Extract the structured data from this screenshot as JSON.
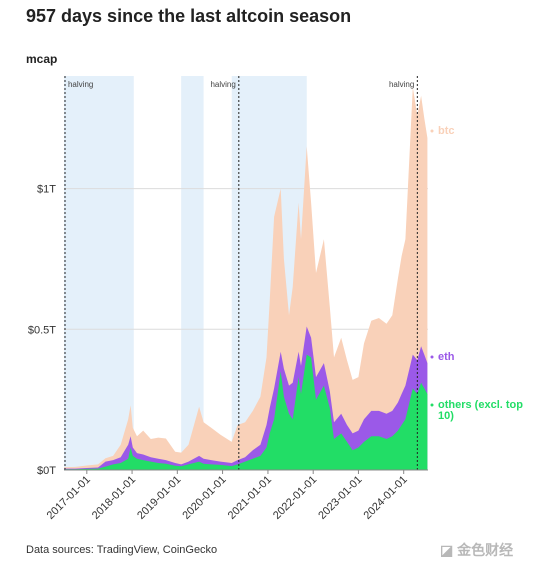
{
  "title": "957 days since the last altcoin season",
  "source": "Data sources: TradingView, CoinGecko",
  "watermark": "金色财经",
  "chart_data": {
    "type": "area",
    "ylabel": "mcap",
    "ylim": [
      0,
      1.4
    ],
    "y_ticks": [
      {
        "value": 0,
        "label": "$0T"
      },
      {
        "value": 0.5,
        "label": "$0.5T"
      },
      {
        "value": 1.0,
        "label": "$1T"
      }
    ],
    "xlim": [
      "2016-07-01",
      "2024-07-15"
    ],
    "x_ticks": [
      "2017-01-01",
      "2018-01-01",
      "2019-01-01",
      "2020-01-01",
      "2021-01-01",
      "2022-01-01",
      "2023-01-01",
      "2024-01-01"
    ],
    "grid": true,
    "shaded_periods": [
      {
        "start": "2016-07-01",
        "end": "2018-01-15",
        "color": "#e4f0fa"
      },
      {
        "start": "2019-02-01",
        "end": "2019-08-01",
        "color": "#e4f0fa"
      },
      {
        "start": "2020-03-15",
        "end": "2021-11-10",
        "color": "#e4f0fa"
      }
    ],
    "halvings": [
      {
        "date": "2016-07-09",
        "label": "halving"
      },
      {
        "date": "2020-05-11",
        "label": "halving"
      },
      {
        "date": "2024-04-20",
        "label": "halving"
      }
    ],
    "x": [
      "2016-07-01",
      "2016-10-01",
      "2017-01-01",
      "2017-04-01",
      "2017-06-01",
      "2017-08-01",
      "2017-10-01",
      "2017-12-01",
      "2017-12-20",
      "2018-01-07",
      "2018-02-10",
      "2018-04-01",
      "2018-06-01",
      "2018-08-01",
      "2018-10-01",
      "2018-12-15",
      "2019-02-01",
      "2019-04-01",
      "2019-06-26",
      "2019-08-01",
      "2019-10-01",
      "2019-12-15",
      "2020-03-15",
      "2020-05-01",
      "2020-07-01",
      "2020-09-01",
      "2020-11-01",
      "2020-12-20",
      "2021-01-15",
      "2021-02-20",
      "2021-04-14",
      "2021-05-10",
      "2021-06-20",
      "2021-07-20",
      "2021-09-05",
      "2021-09-25",
      "2021-11-10",
      "2021-12-15",
      "2022-01-24",
      "2022-03-28",
      "2022-05-15",
      "2022-06-18",
      "2022-08-15",
      "2022-10-01",
      "2022-11-15",
      "2023-01-01",
      "2023-02-15",
      "2023-04-15",
      "2023-06-15",
      "2023-08-15",
      "2023-10-01",
      "2023-11-15",
      "2023-12-15",
      "2024-01-15",
      "2024-03-14",
      "2024-04-20",
      "2024-05-20",
      "2024-06-15",
      "2024-07-10"
    ],
    "series": [
      {
        "name": "btc",
        "color": "#f9d1b9",
        "values": [
          0.01,
          0.011,
          0.016,
          0.02,
          0.042,
          0.05,
          0.09,
          0.18,
          0.23,
          0.15,
          0.12,
          0.14,
          0.11,
          0.115,
          0.112,
          0.065,
          0.062,
          0.09,
          0.225,
          0.17,
          0.15,
          0.125,
          0.1,
          0.16,
          0.17,
          0.21,
          0.26,
          0.4,
          0.6,
          0.9,
          1.0,
          0.75,
          0.55,
          0.65,
          0.95,
          0.82,
          1.15,
          0.95,
          0.7,
          0.82,
          0.58,
          0.4,
          0.47,
          0.39,
          0.32,
          0.33,
          0.45,
          0.53,
          0.54,
          0.52,
          0.55,
          0.68,
          0.76,
          0.82,
          1.36,
          1.26,
          1.33,
          1.25,
          1.18
        ]
      },
      {
        "name": "eth",
        "color": "#9b59e8",
        "values": [
          0.005,
          0.005,
          0.007,
          0.009,
          0.03,
          0.035,
          0.045,
          0.09,
          0.12,
          0.08,
          0.06,
          0.055,
          0.045,
          0.04,
          0.035,
          0.025,
          0.02,
          0.03,
          0.05,
          0.04,
          0.035,
          0.03,
          0.025,
          0.035,
          0.045,
          0.07,
          0.09,
          0.16,
          0.22,
          0.29,
          0.42,
          0.36,
          0.3,
          0.31,
          0.42,
          0.37,
          0.51,
          0.47,
          0.33,
          0.38,
          0.28,
          0.17,
          0.2,
          0.16,
          0.13,
          0.14,
          0.18,
          0.21,
          0.21,
          0.2,
          0.21,
          0.24,
          0.27,
          0.3,
          0.41,
          0.39,
          0.44,
          0.41,
          0.38
        ]
      },
      {
        "name": "others (excl. top 10)",
        "color": "#22dd66",
        "values": [
          0.003,
          0.003,
          0.004,
          0.005,
          0.012,
          0.02,
          0.025,
          0.04,
          0.08,
          0.05,
          0.04,
          0.035,
          0.03,
          0.025,
          0.022,
          0.015,
          0.013,
          0.02,
          0.03,
          0.022,
          0.02,
          0.018,
          0.014,
          0.02,
          0.03,
          0.04,
          0.05,
          0.08,
          0.13,
          0.18,
          0.35,
          0.26,
          0.2,
          0.18,
          0.33,
          0.27,
          0.41,
          0.4,
          0.25,
          0.3,
          0.22,
          0.11,
          0.13,
          0.1,
          0.07,
          0.08,
          0.1,
          0.12,
          0.12,
          0.11,
          0.12,
          0.14,
          0.16,
          0.18,
          0.29,
          0.27,
          0.31,
          0.29,
          0.27
        ]
      }
    ]
  }
}
